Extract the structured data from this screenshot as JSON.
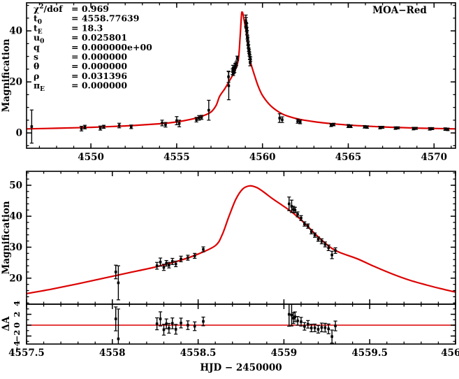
{
  "figure": {
    "dataset_label": "MOA−Red",
    "model_color": "#dd0000",
    "data_color": "#000000"
  },
  "params": {
    "lines": [
      {
        "parts": [
          {
            "t": "χ"
          },
          {
            "t": "2",
            "pos": "sup"
          },
          {
            "t": "/dof"
          }
        ],
        "value": "0.969"
      },
      {
        "parts": [
          {
            "t": "t"
          },
          {
            "t": "0",
            "pos": "sub"
          }
        ],
        "value": "4558.77639"
      },
      {
        "parts": [
          {
            "t": "t"
          },
          {
            "t": "E",
            "pos": "sub"
          }
        ],
        "value": "18.3"
      },
      {
        "parts": [
          {
            "t": "u"
          },
          {
            "t": "0",
            "pos": "sub"
          }
        ],
        "value": "0.025801"
      },
      {
        "parts": [
          {
            "t": "q"
          }
        ],
        "value": "0.000000e+00"
      },
      {
        "parts": [
          {
            "t": "s"
          }
        ],
        "value": "0.000000"
      },
      {
        "parts": [
          {
            "t": "θ"
          }
        ],
        "value": "0.000000"
      },
      {
        "parts": [
          {
            "t": "ρ"
          }
        ],
        "value": "0.031396"
      },
      {
        "parts": [
          {
            "t": "π"
          },
          {
            "t": "E",
            "pos": "sub"
          }
        ],
        "value": "0.000000"
      }
    ]
  },
  "chart_data": [
    {
      "type": "line+scatter",
      "panel": "full-light-curve",
      "title": "MOA−Red",
      "ylabel": "Magnification",
      "xlim": [
        4546.25,
        4571.25
      ],
      "ylim": [
        -6,
        51
      ],
      "xticks": {
        "major": [
          4550,
          4555,
          4560,
          4565,
          4570
        ],
        "labels": [
          "4550",
          "4555",
          "4560",
          "4565",
          "4570"
        ],
        "minor_step": 1
      },
      "yticks": {
        "major": [
          0,
          20,
          40
        ],
        "labels": [
          "0",
          "20",
          "40"
        ],
        "minor_step": 5
      },
      "model_curve": [
        [
          4546.25,
          1.6
        ],
        [
          4548,
          1.85
        ],
        [
          4550,
          2.2
        ],
        [
          4552,
          2.75
        ],
        [
          4554,
          3.6
        ],
        [
          4555,
          4.3
        ],
        [
          4556,
          5.6
        ],
        [
          4556.5,
          6.6
        ],
        [
          4557,
          8.2
        ],
        [
          4557.3,
          10.8
        ],
        [
          4557.5,
          14.3
        ],
        [
          4557.8,
          17.3
        ],
        [
          4558.1,
          20.7
        ],
        [
          4558.4,
          24.5
        ],
        [
          4558.6,
          29.0
        ],
        [
          4558.7,
          38.0
        ],
        [
          4558.78,
          46.4
        ],
        [
          4558.82,
          47.3
        ],
        [
          4558.86,
          46.7
        ],
        [
          4558.95,
          43.5
        ],
        [
          4559.05,
          39.7
        ],
        [
          4559.15,
          34.8
        ],
        [
          4559.25,
          29.7
        ],
        [
          4559.35,
          26.6
        ],
        [
          4559.55,
          22.3
        ],
        [
          4559.75,
          18.3
        ],
        [
          4560,
          14.7
        ],
        [
          4560.4,
          11.2
        ],
        [
          4560.8,
          8.9
        ],
        [
          4561.2,
          7.3
        ],
        [
          4561.7,
          6.1
        ],
        [
          4562.2,
          5.3
        ],
        [
          4563,
          4.4
        ],
        [
          4564,
          3.65
        ],
        [
          4565,
          3.1
        ],
        [
          4566,
          2.7
        ],
        [
          4567,
          2.35
        ],
        [
          4568,
          2.1
        ],
        [
          4569,
          1.9
        ],
        [
          4570,
          1.75
        ],
        [
          4571.25,
          1.6
        ]
      ],
      "points": [
        [
          4546.55,
          2.5,
          6.5
        ],
        [
          4549.45,
          1.7,
          0.9
        ],
        [
          4549.65,
          2.3,
          0.7
        ],
        [
          4550.55,
          1.9,
          0.8
        ],
        [
          4550.75,
          2.4,
          0.6
        ],
        [
          4551.65,
          2.9,
          0.9
        ],
        [
          4552.35,
          2.4,
          0.7
        ],
        [
          4554.15,
          3.9,
          1.1
        ],
        [
          4554.35,
          3.2,
          0.9
        ],
        [
          4555.0,
          4.8,
          1.6
        ],
        [
          4555.15,
          3.7,
          1.3
        ],
        [
          4556.15,
          5.2,
          0.9
        ],
        [
          4556.3,
          5.9,
          0.9
        ],
        [
          4556.45,
          6.1,
          0.8
        ],
        [
          4556.87,
          8.9,
          3.9
        ],
        [
          4558.02,
          22.0,
          2.2
        ],
        [
          4558.035,
          18.5,
          5.5
        ],
        [
          4558.26,
          24.0,
          1.1
        ],
        [
          4558.28,
          25.2,
          1.3
        ],
        [
          4558.3,
          23.5,
          1.0
        ],
        [
          4558.315,
          24.8,
          0.9
        ],
        [
          4558.33,
          24.2,
          0.9
        ],
        [
          4558.35,
          25.4,
          1.0
        ],
        [
          4558.37,
          24.6,
          0.9
        ],
        [
          4558.4,
          26.2,
          0.9
        ],
        [
          4558.44,
          26.6,
          0.8
        ],
        [
          4558.48,
          27.2,
          0.8
        ],
        [
          4558.53,
          29.3,
          0.8
        ],
        [
          4559.03,
          44.0,
          2.2
        ],
        [
          4559.045,
          43.2,
          2.0
        ],
        [
          4559.055,
          42.2,
          1.0
        ],
        [
          4559.065,
          42.0,
          0.9
        ],
        [
          4559.08,
          40.6,
          0.8
        ],
        [
          4559.1,
          39.4,
          0.8
        ],
        [
          4559.12,
          37.5,
          0.7
        ],
        [
          4559.14,
          36.8,
          0.7
        ],
        [
          4559.16,
          35.0,
          0.7
        ],
        [
          4559.18,
          33.9,
          0.7
        ],
        [
          4559.2,
          32.6,
          0.7
        ],
        [
          4559.22,
          31.9,
          0.8
        ],
        [
          4559.24,
          30.9,
          0.8
        ],
        [
          4559.26,
          29.8,
          0.9
        ],
        [
          4559.28,
          27.5,
          1.2
        ],
        [
          4559.3,
          28.9,
          0.9
        ],
        [
          4561.0,
          5.8,
          1.7
        ],
        [
          4561.15,
          5.2,
          1.1
        ],
        [
          4562.05,
          4.6,
          0.8
        ],
        [
          4562.2,
          4.3,
          0.7
        ],
        [
          4564.0,
          3.1,
          0.6
        ],
        [
          4564.15,
          3.3,
          0.5
        ],
        [
          4565.0,
          2.7,
          0.6
        ],
        [
          4565.15,
          2.6,
          0.5
        ],
        [
          4565.95,
          2.4,
          0.5
        ],
        [
          4566.1,
          2.3,
          0.5
        ],
        [
          4566.85,
          2.1,
          0.5
        ],
        [
          4567.0,
          2.2,
          0.4
        ],
        [
          4567.75,
          1.9,
          0.5
        ],
        [
          4567.9,
          2.0,
          0.4
        ],
        [
          4568.8,
          1.7,
          0.5
        ],
        [
          4568.95,
          1.8,
          0.4
        ],
        [
          4569.75,
          1.6,
          0.5
        ],
        [
          4569.9,
          1.7,
          0.4
        ],
        [
          4570.65,
          1.5,
          0.5
        ],
        [
          4570.8,
          1.4,
          0.5
        ]
      ]
    },
    {
      "type": "line+scatter",
      "panel": "peak-zoom",
      "ylabel": "Magnification",
      "xlim": [
        4557.5,
        4560
      ],
      "ylim": [
        11.6,
        54.5
      ],
      "xticks": {
        "major": [
          4557.5,
          4558,
          4558.5,
          4559,
          4559.5,
          4560
        ],
        "labels": [],
        "minor_step": 0.1
      },
      "yticks": {
        "major": [
          20,
          30,
          40,
          50
        ],
        "labels": [
          "20",
          "30",
          "40",
          "50"
        ],
        "minor_step": 2
      },
      "model_curve": [
        [
          4557.5,
          15.0
        ],
        [
          4557.65,
          16.5
        ],
        [
          4557.8,
          18.2
        ],
        [
          4557.95,
          20.0
        ],
        [
          4558.1,
          21.8
        ],
        [
          4558.25,
          23.6
        ],
        [
          4558.4,
          25.8
        ],
        [
          4558.5,
          27.8
        ],
        [
          4558.6,
          30.5
        ],
        [
          4558.64,
          34.0
        ],
        [
          4558.68,
          40.0
        ],
        [
          4558.72,
          45.5
        ],
        [
          4558.76,
          48.8
        ],
        [
          4558.8,
          49.8
        ],
        [
          4558.84,
          49.3
        ],
        [
          4558.88,
          47.9
        ],
        [
          4558.93,
          45.8
        ],
        [
          4558.98,
          43.9
        ],
        [
          4559.03,
          42.0
        ],
        [
          4559.08,
          39.8
        ],
        [
          4559.13,
          37.2
        ],
        [
          4559.18,
          34.4
        ],
        [
          4559.23,
          31.8
        ],
        [
          4559.28,
          29.6
        ],
        [
          4559.33,
          28.2
        ],
        [
          4559.43,
          26.2
        ],
        [
          4559.53,
          23.7
        ],
        [
          4559.63,
          21.4
        ],
        [
          4559.73,
          19.4
        ],
        [
          4559.83,
          17.8
        ],
        [
          4559.93,
          16.4
        ],
        [
          4560,
          15.5
        ]
      ]
    },
    {
      "type": "scatter",
      "panel": "residuals",
      "ylabel": "ΔA",
      "xlabel": "HJD − 2450000",
      "xlim": [
        4557.5,
        4560
      ],
      "ylim": [
        -3.48,
        3.87
      ],
      "zero_line": 0,
      "xticks": {
        "major": [
          4557.5,
          4558,
          4558.5,
          4559,
          4559.5,
          4560
        ],
        "labels": [
          "4557.5",
          "4558",
          "4558.5",
          "4559",
          "4559.5",
          "4560"
        ],
        "minor_step": 0.1
      },
      "yticks": {
        "major": [
          2,
          0,
          -2
        ],
        "label_values": [
          4,
          2,
          0,
          -2,
          -4
        ],
        "labels": [
          "4",
          "2",
          "0",
          "−2",
          "−4"
        ],
        "minor_step": 1
      },
      "note": "residual = data magnification minus model curve"
    }
  ]
}
